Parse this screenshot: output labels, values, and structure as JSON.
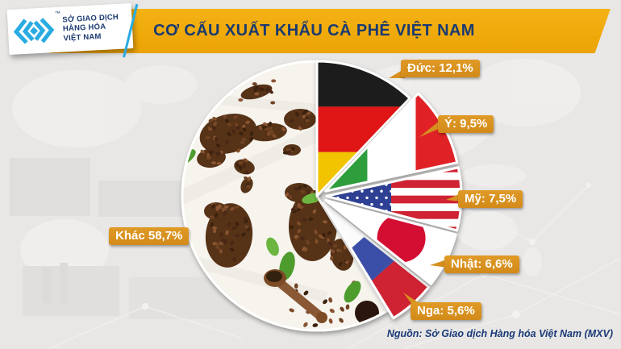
{
  "header": {
    "title": "CƠ CẤU XUẤT KHẨU CÀ PHÊ VIỆT NAM"
  },
  "logo": {
    "line1": "SỞ GIAO DỊCH",
    "line2": "HÀNG HÓA",
    "line3": "VIỆT NAM",
    "trademark": "™",
    "icon": "mxv-diamond-chevrons-icon"
  },
  "source_note": "Nguồn: Sở Giao dịch Hàng hóa Việt Nam (MXV)",
  "colors": {
    "background": "#E8E7E5",
    "banner_gold": "#F0A90B",
    "label_gold": "#D8911F",
    "navy": "#1A3A70",
    "logo_cyan": "#29ABE2"
  },
  "chart_data": {
    "type": "pie",
    "title": "CƠ CẤU XUẤT KHẨU CÀ PHÊ VIỆT NAM",
    "unit": "percent",
    "start_angle_deg_from_12_oclock": 0,
    "direction": "clockwise",
    "legend_position": "none",
    "label_style": "callout-badges",
    "slices": [
      {
        "id": "germany",
        "label": "Đức",
        "value": 12.1,
        "display": "Đức: 12,1%",
        "fill": "germany-flag",
        "exploded": false
      },
      {
        "id": "italy",
        "label": "Ý",
        "value": 9.5,
        "display": "Ý: 9,5%",
        "fill": "italy-flag",
        "exploded": true
      },
      {
        "id": "usa",
        "label": "Mỹ",
        "value": 7.5,
        "display": "Mỹ: 7,5%",
        "fill": "usa-flag",
        "exploded": true
      },
      {
        "id": "japan",
        "label": "Nhật",
        "value": 6.6,
        "display": "Nhật: 6,6%",
        "fill": "japan-flag",
        "exploded": true
      },
      {
        "id": "russia",
        "label": "Nga",
        "value": 5.6,
        "display": "Nga: 5,6%",
        "fill": "russia-flag",
        "exploded": true
      },
      {
        "id": "other",
        "label": "Khác",
        "value": 58.7,
        "display": "Khác 58,7%",
        "fill": "coffee-world-map",
        "exploded": false
      }
    ]
  }
}
